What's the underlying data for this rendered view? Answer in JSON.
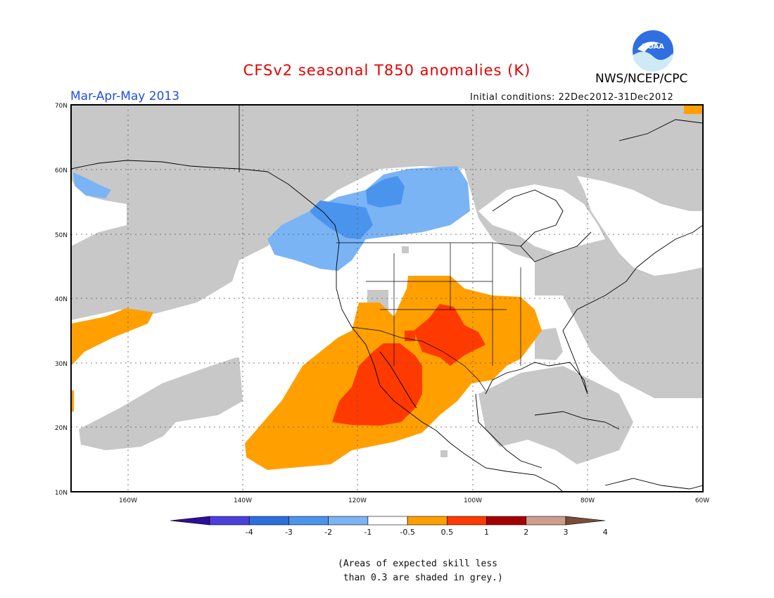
{
  "title": "CFSv2 seasonal T850 anomalies (K)",
  "season_label": "Mar-Apr-May 2013",
  "initial_conditions": "Initial conditions: 22Dec2012-31Dec2012",
  "agency": "NWS/NCEP/CPC",
  "logo_text": "NOAA",
  "map": {
    "lat_labels": [
      "70N",
      "60N",
      "50N",
      "40N",
      "30N",
      "20N",
      "10N"
    ],
    "lon_labels": [
      "160W",
      "140W",
      "120W",
      "100W",
      "80W",
      "60W"
    ],
    "extent": {
      "lon_min": -172,
      "lon_max": -60,
      "lat_min": 10,
      "lat_max": 70
    },
    "gridlines": "dotted"
  },
  "legend": {
    "tick_labels": [
      "-4",
      "-3",
      "-2",
      "-1",
      "-0.5",
      "0.5",
      "1",
      "2",
      "3",
      "4"
    ],
    "colors": [
      "#2d0e9c",
      "#4b3fdc",
      "#2b6fdc",
      "#4b94ee",
      "#7ab4f5",
      "#ffffff",
      "#ffa000",
      "#ff3a00",
      "#a60000",
      "#cd9d8b",
      "#7b4c3a"
    ]
  },
  "note": "(Areas of expected skill less\n than 0.3 are shaded in grey.)",
  "colors": {
    "grey": "#c8c8c8",
    "orange": "#ffa000",
    "red_orange": "#ff3a00",
    "blue_dark": "#4b94ee",
    "blue_light": "#7ab4f5",
    "title": "#e60000",
    "season": "#1f4fe6"
  }
}
